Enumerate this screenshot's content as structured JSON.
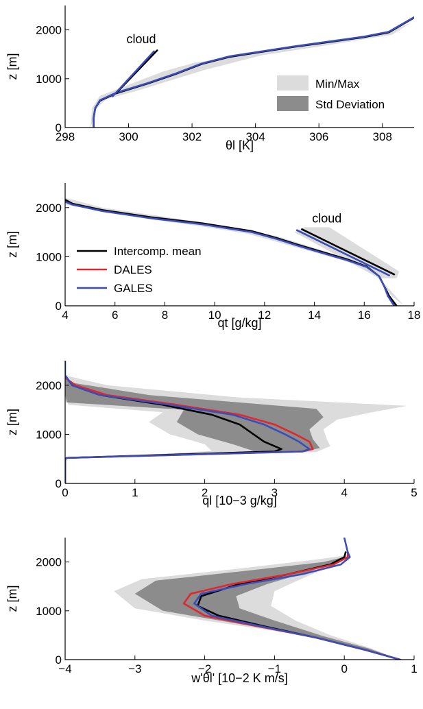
{
  "chart_data": [
    {
      "type": "line",
      "xlabel": "θl [K]",
      "ylabel": "z [m]",
      "xlim": [
        298,
        309
      ],
      "ylim": [
        0,
        2500
      ],
      "xticks": [
        "298",
        "300",
        "302",
        "304",
        "306",
        "308"
      ],
      "yticks": [
        "0",
        "1000",
        "2000"
      ],
      "annotation": {
        "text": "cloud",
        "x": 300.4,
        "y": 1730
      },
      "legend": {
        "placement": "bottom-right",
        "entries": [
          "Min/Max",
          "Std Deviation"
        ]
      },
      "series": [
        {
          "name": "",
          "color": "#000000",
          "x": [
            298.9,
            298.9,
            298.95,
            299.1,
            299.6,
            300.6,
            301.5,
            302.3,
            303.2,
            304.2,
            305.2,
            306.3,
            307.4,
            308.2,
            308.6,
            309.0
          ],
          "y": [
            0,
            200,
            400,
            550,
            700,
            900,
            1100,
            1300,
            1450,
            1550,
            1650,
            1750,
            1850,
            1950,
            2100,
            2250
          ]
        },
        {
          "name": "",
          "color": "#3a4db8",
          "x": [
            298.9,
            298.9,
            298.95,
            299.1,
            299.6,
            300.6,
            301.5,
            302.3,
            303.2,
            304.2,
            305.2,
            306.3,
            307.4,
            308.2,
            308.6,
            309.0
          ],
          "y": [
            0,
            200,
            400,
            560,
            710,
            910,
            1110,
            1310,
            1460,
            1560,
            1660,
            1760,
            1860,
            1960,
            2110,
            2260
          ]
        },
        {
          "name": "",
          "color": "#000000",
          "x": [
            299.6,
            300.9
          ],
          "y": [
            700,
            1580
          ]
        },
        {
          "name": "",
          "color": "#3a4db8",
          "x": [
            299.5,
            300.8
          ],
          "y": [
            640,
            1560
          ]
        }
      ]
    },
    {
      "type": "line",
      "xlabel": "qt [g/kg]",
      "ylabel": "z [m]",
      "xlim": [
        4,
        18
      ],
      "ylim": [
        0,
        2500
      ],
      "xticks": [
        "4",
        "6",
        "8",
        "10",
        "12",
        "14",
        "16",
        "18"
      ],
      "yticks": [
        "0",
        "1000",
        "2000"
      ],
      "annotation": {
        "text": "cloud",
        "x": 14.5,
        "y": 1700
      },
      "legend": {
        "placement": "center-left",
        "entries": [
          "Intercomp. mean",
          "DALES",
          "GALES"
        ]
      },
      "series": [
        {
          "name": "Intercomp. mean",
          "color": "#000000",
          "x": [
            4.0,
            4.3,
            5.5,
            7.5,
            9.5,
            11.5,
            12.5,
            13.3,
            14.3,
            15.3,
            16.1,
            16.6,
            16.8,
            17.0,
            17.3
          ],
          "y": [
            2160,
            2080,
            1950,
            1800,
            1680,
            1520,
            1380,
            1250,
            1100,
            950,
            800,
            600,
            400,
            200,
            0
          ]
        },
        {
          "name": "GALES",
          "color": "#3a4db8",
          "x": [
            4.0,
            4.3,
            5.5,
            7.5,
            9.5,
            11.5,
            12.5,
            13.3,
            14.3,
            15.3,
            16.1,
            16.6,
            16.8,
            16.95,
            17.2
          ],
          "y": [
            2120,
            2060,
            1930,
            1780,
            1660,
            1500,
            1360,
            1230,
            1080,
            930,
            790,
            600,
            400,
            200,
            0
          ]
        },
        {
          "name": "",
          "color": "#000000",
          "x": [
            13.5,
            17.2
          ],
          "y": [
            1560,
            640
          ]
        },
        {
          "name": "",
          "color": "#3a4db8",
          "x": [
            13.3,
            17.0
          ],
          "y": [
            1540,
            620
          ]
        }
      ]
    },
    {
      "type": "line",
      "xlabel": "ql [10−3 g/kg]",
      "ylabel": "z [m]",
      "xlim": [
        0,
        5
      ],
      "ylim": [
        0,
        2500
      ],
      "xticks": [
        "0",
        "1",
        "2",
        "3",
        "4",
        "5"
      ],
      "yticks": [
        "0",
        "1000",
        "2000"
      ],
      "series": [
        {
          "name": "Intercomp. mean",
          "color": "#000000",
          "x": [
            0,
            0,
            0.02,
            3.0,
            3.1,
            2.85,
            2.7,
            2.5,
            2.1,
            1.4,
            0.5,
            0.1,
            0
          ],
          "y": [
            0,
            480,
            520,
            650,
            700,
            850,
            1000,
            1200,
            1400,
            1600,
            1800,
            2000,
            2200
          ]
        },
        {
          "name": "DALES",
          "color": "#e0262e",
          "x": [
            0,
            0,
            0.02,
            3.4,
            3.55,
            3.5,
            3.3,
            3.0,
            2.5,
            1.6,
            0.6,
            0.15,
            0
          ],
          "y": [
            0,
            480,
            520,
            650,
            700,
            850,
            1000,
            1200,
            1400,
            1600,
            1800,
            2000,
            2150
          ]
        },
        {
          "name": "GALES",
          "color": "#3a4db8",
          "x": [
            0,
            0,
            0.02,
            3.4,
            3.5,
            3.35,
            3.15,
            2.85,
            2.4,
            1.5,
            0.5,
            0.1,
            0,
            0
          ],
          "y": [
            0,
            480,
            520,
            650,
            700,
            850,
            1000,
            1200,
            1400,
            1600,
            1800,
            2000,
            2200,
            2500
          ]
        }
      ]
    },
    {
      "type": "line",
      "xlabel": "w'θl' [10−2 K m/s]",
      "ylabel": "z [m]",
      "xlim": [
        -4,
        1
      ],
      "ylim": [
        0,
        2500
      ],
      "xticks": [
        "−4",
        "−3",
        "−2",
        "−1",
        "0",
        "1"
      ],
      "yticks": [
        "0",
        "1000",
        "2000"
      ],
      "series": [
        {
          "name": "Intercomp. mean",
          "color": "#000000",
          "x": [
            0.8,
            0.3,
            -0.4,
            -1.2,
            -1.8,
            -2.1,
            -2.05,
            -1.5,
            -0.8,
            -0.2,
            0.0,
            0.02
          ],
          "y": [
            0,
            200,
            450,
            700,
            900,
            1100,
            1300,
            1550,
            1750,
            1950,
            2100,
            2200
          ]
        },
        {
          "name": "DALES",
          "color": "#e0262e",
          "x": [
            0.8,
            0.3,
            -0.4,
            -1.3,
            -2.0,
            -2.3,
            -2.2,
            -1.6,
            -0.8,
            -0.15,
            0.05,
            0.05
          ],
          "y": [
            0,
            200,
            450,
            700,
            900,
            1150,
            1350,
            1550,
            1750,
            1950,
            2100,
            2200
          ]
        },
        {
          "name": "GALES",
          "color": "#3a4db8",
          "x": [
            0.8,
            0.3,
            -0.4,
            -1.25,
            -1.9,
            -2.15,
            -2.05,
            -1.4,
            -0.6,
            -0.05,
            0.08,
            0.05,
            0.0
          ],
          "y": [
            0,
            200,
            450,
            700,
            900,
            1150,
            1350,
            1550,
            1750,
            1950,
            2100,
            2200,
            2500
          ]
        }
      ]
    }
  ]
}
